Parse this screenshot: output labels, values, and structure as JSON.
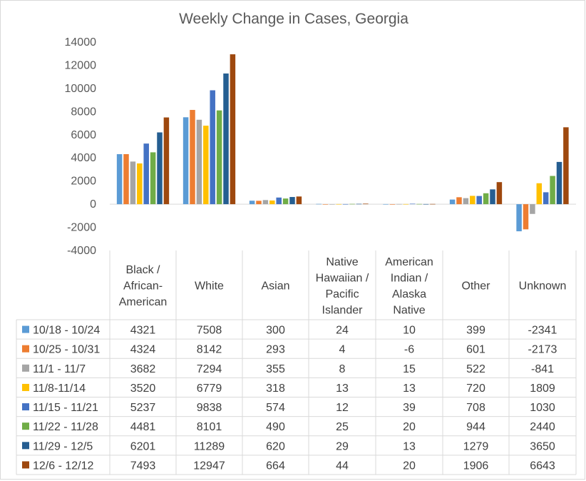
{
  "chart_data": {
    "type": "bar",
    "title": "Weekly Change in Cases, Georgia",
    "xlabel": "",
    "ylabel": "",
    "ylim": [
      -4000,
      14000
    ],
    "yticks": [
      14000,
      12000,
      10000,
      8000,
      6000,
      4000,
      2000,
      0,
      -2000,
      -4000
    ],
    "grid": false,
    "legend": "data-table-left",
    "categories": [
      [
        "Black /",
        "African-",
        "American"
      ],
      [
        "White"
      ],
      [
        "Asian"
      ],
      [
        "Native",
        "Hawaiian /",
        "Pacific",
        "Islander"
      ],
      [
        "American",
        "Indian /",
        "Alaska",
        "Native"
      ],
      [
        "Other"
      ],
      [
        "Unknown"
      ]
    ],
    "series": [
      {
        "name": "10/18 - 10/24",
        "color": "#5b9bd5",
        "values": [
          4321,
          7508,
          300,
          24,
          10,
          399,
          -2341
        ]
      },
      {
        "name": "10/25 - 10/31",
        "color": "#ed7d31",
        "values": [
          4324,
          8142,
          293,
          4,
          -6,
          601,
          -2173
        ]
      },
      {
        "name": "11/1 - 11/7",
        "color": "#a5a5a5",
        "values": [
          3682,
          7294,
          355,
          8,
          15,
          522,
          -841
        ]
      },
      {
        "name": "11/8-11/14",
        "color": "#ffc000",
        "values": [
          3520,
          6779,
          318,
          13,
          13,
          720,
          1809
        ]
      },
      {
        "name": "11/15 - 11/21",
        "color": "#4472c4",
        "values": [
          5237,
          9838,
          574,
          12,
          39,
          708,
          1030
        ]
      },
      {
        "name": "11/22 - 11/28",
        "color": "#70ad47",
        "values": [
          4481,
          8101,
          490,
          25,
          20,
          944,
          2440
        ]
      },
      {
        "name": "11/29 - 12/5",
        "color": "#255e91",
        "values": [
          6201,
          11289,
          620,
          29,
          13,
          1279,
          3650
        ]
      },
      {
        "name": "12/6 - 12/12",
        "color": "#9e480e",
        "values": [
          7493,
          12947,
          664,
          44,
          20,
          1906,
          6643
        ]
      }
    ]
  }
}
